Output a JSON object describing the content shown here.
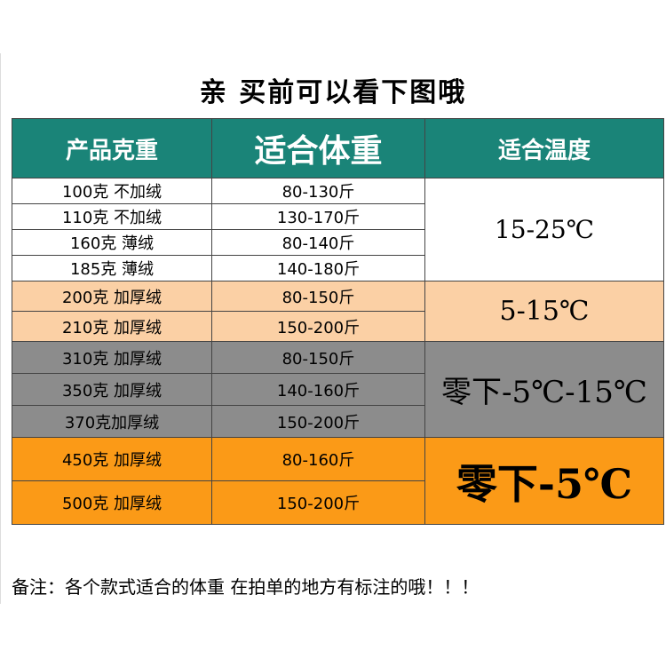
{
  "title": "亲    买前可以看下图哦",
  "table": {
    "headers": [
      "产品克重",
      "适合体重",
      "适合温度"
    ],
    "groups": [
      {
        "temperature": "15-25℃",
        "rows": [
          {
            "gram": "100克  不加绒",
            "weight": "80-130斤"
          },
          {
            "gram": "110克 不加绒",
            "weight": "130-170斤"
          },
          {
            "gram": "160克  薄绒",
            "weight": "80-140斤"
          },
          {
            "gram": "185克  薄绒",
            "weight": "140-180斤"
          }
        ]
      },
      {
        "temperature": "5-15℃",
        "rows": [
          {
            "gram": "200克  加厚绒",
            "weight": "80-150斤"
          },
          {
            "gram": "210克    加厚绒",
            "weight": "150-200斤"
          }
        ]
      },
      {
        "temperature": "零下-5℃-15℃",
        "rows": [
          {
            "gram": "310克  加厚绒",
            "weight": "80-150斤"
          },
          {
            "gram": "350克    加厚绒",
            "weight": "140-160斤"
          },
          {
            "gram": "370克加厚绒",
            "weight": "150-200斤"
          }
        ]
      },
      {
        "temperature": "零下-5℃",
        "rows": [
          {
            "gram": "450克    加厚绒",
            "weight": "80-160斤"
          },
          {
            "gram": "500克    加厚绒",
            "weight": "150-200斤"
          }
        ]
      }
    ]
  },
  "footer": "备注：各个款式适合的体重    在拍单的地方有标注的哦！！！",
  "colors": {
    "header": "#1a8478",
    "group1": "#ffffff",
    "group2": "#fbd0a5",
    "group3": "#8c8c8c",
    "group4": "#fb9a17"
  }
}
